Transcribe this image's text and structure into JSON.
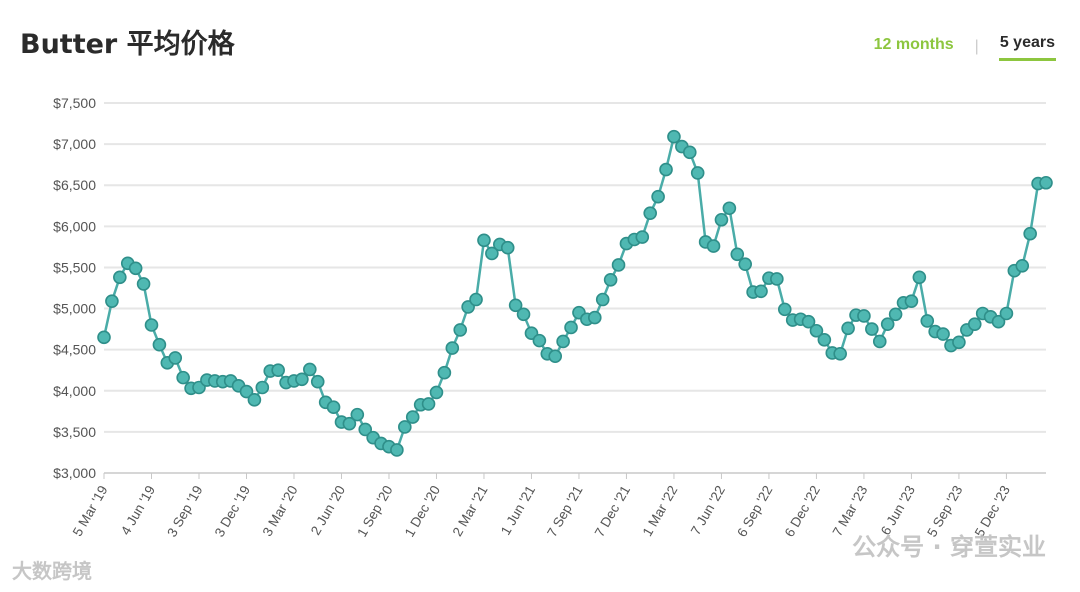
{
  "header": {
    "title": "Butter 平均价格",
    "tab_12_months": "12 months",
    "tab_5_years": "5 years",
    "active_tab": "5 years",
    "accent_color": "#8dc63f"
  },
  "watermarks": {
    "right": "公众号 · 穿萱实业",
    "left": "大数跨境"
  },
  "chart_data": {
    "type": "line",
    "title": "Butter 平均价格",
    "xlabel": "",
    "ylabel": "",
    "ylim": [
      3000,
      7500
    ],
    "yticks": [
      3000,
      3500,
      4000,
      4500,
      5000,
      5500,
      6000,
      6500,
      7000,
      7500
    ],
    "ytick_labels": [
      "$3,000",
      "$3,500",
      "$4,000",
      "$4,500",
      "$5,000",
      "$5,500",
      "$6,000",
      "$6,500",
      "$7,000",
      "$7,500"
    ],
    "grid": true,
    "line_color": "#4aaca8",
    "marker_fill": "#4fb8b2",
    "xtick_labels": [
      "5 Mar '19",
      "4 Jun '19",
      "3 Sep '19",
      "3 Dec '19",
      "3 Mar '20",
      "2 Jun '20",
      "1 Sep '20",
      "1 Dec '20",
      "2 Mar '21",
      "1 Jun '21",
      "7 Sep '21",
      "7 Dec '21",
      "1 Mar '22",
      "7 Jun '22",
      "6 Sep '22",
      "6 Dec '22",
      "7 Mar '23",
      "6 Jun '23",
      "5 Sep '23",
      "5 Dec '23"
    ],
    "xtick_positions": [
      0,
      6,
      12,
      18,
      24,
      30,
      36,
      42,
      48,
      54,
      60,
      66,
      72,
      78,
      84,
      90,
      96,
      102,
      108,
      114
    ],
    "series": [
      {
        "values": [
          4650,
          5090,
          5380,
          5550,
          5490,
          5300,
          4800,
          4560,
          4340,
          4400,
          4160,
          4030,
          4040,
          4130,
          4120,
          4110,
          4120,
          4060,
          3990,
          3890,
          4040,
          4240,
          4250,
          4100,
          4120,
          4140,
          4260,
          4110,
          3860,
          3800,
          3620,
          3600,
          3710,
          3530,
          3430,
          3360,
          3320,
          3280,
          3560,
          3680,
          3830,
          3840,
          3980,
          4220,
          4520,
          4740,
          5020,
          5110,
          5830,
          5670,
          5780,
          5740,
          5040,
          4930,
          4700,
          4610,
          4450,
          4420,
          4600,
          4770,
          4950,
          4870,
          4890,
          5110,
          5350,
          5530,
          5790,
          5840,
          5870,
          6160,
          6360,
          6690,
          7090,
          6970,
          6900,
          6650,
          5810,
          5760,
          6080,
          6220,
          5660,
          5540,
          5200,
          5210,
          5370,
          5360,
          4990,
          4860,
          4870,
          4840,
          4730,
          4620,
          4460,
          4450,
          4760,
          4920,
          4910,
          4750,
          4600,
          4810,
          4930,
          5070,
          5090,
          5380,
          4850,
          4720,
          4690,
          4550,
          4590,
          4740,
          4810,
          4940,
          4900,
          4840,
          4940,
          5460,
          5520,
          5910,
          6520,
          6530
        ]
      }
    ]
  }
}
